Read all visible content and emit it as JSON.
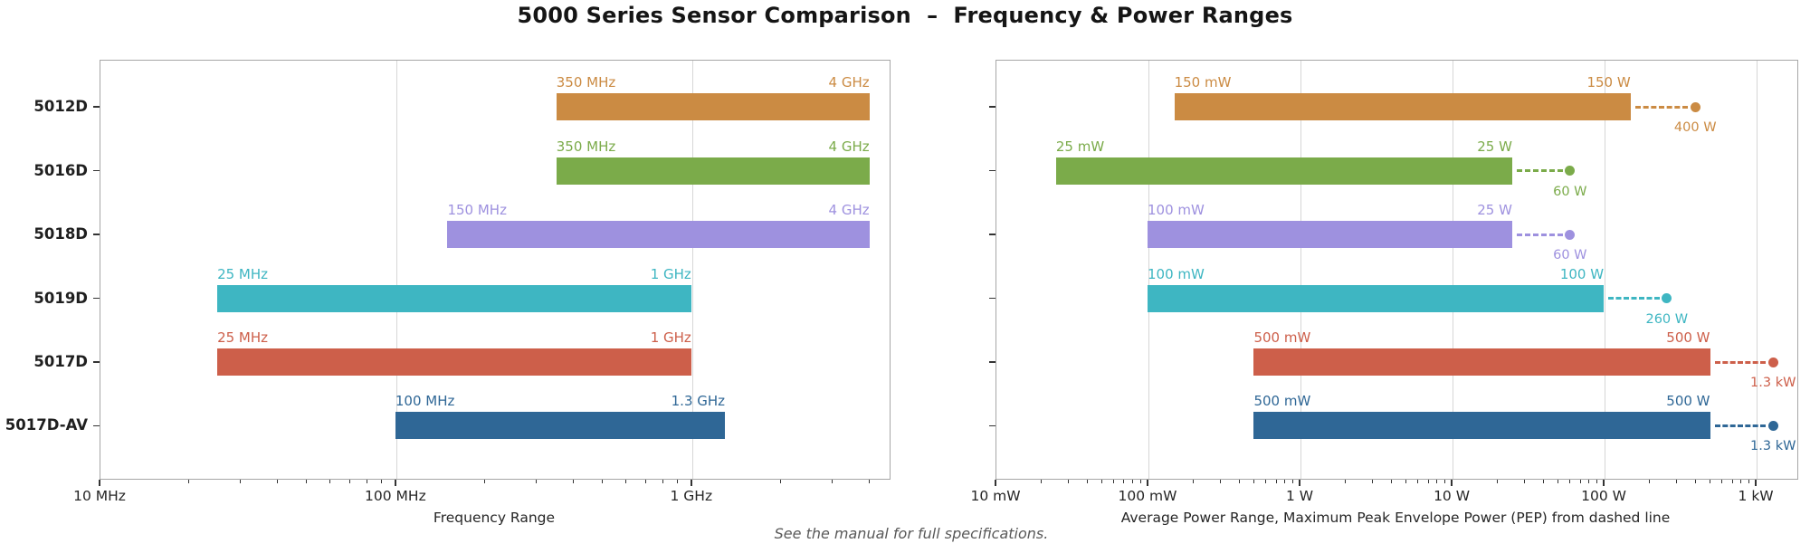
{
  "title": "5000 Series Sensor Comparison  –  Frequency & Power Ranges",
  "footnote": "See the manual for full specifications.",
  "colors": {
    "rows": [
      "#CB8B43",
      "#7BAB4A",
      "#9E91DF",
      "#3EB6C2",
      "#CD5F4A",
      "#2F6796"
    ],
    "grid": "#d6d6d6",
    "spine": "#a6a6a6",
    "tick": "#333333",
    "text": "#262626",
    "title": "#151515",
    "footnote": "#595959"
  },
  "chart_data": [
    {
      "type": "bar",
      "subtype": "horizontal-range",
      "xlabel": "Frequency Range",
      "xscale": "log",
      "xunit": "Hz",
      "xlim": [
        10000000,
        4650000000
      ],
      "grid": true,
      "legend": false,
      "xticks": [
        {
          "value": 10000000,
          "label": "10 MHz"
        },
        {
          "value": 100000000,
          "label": "100 MHz"
        },
        {
          "value": 1000000000,
          "label": "1 GHz"
        }
      ],
      "categories": [
        "5012D",
        "5016D",
        "5018D",
        "5019D",
        "5017D",
        "5017D-AV"
      ],
      "series": [
        {
          "category": "5012D",
          "start": 350000000,
          "end": 4000000000,
          "start_label": "350 MHz",
          "end_label": "4 GHz"
        },
        {
          "category": "5016D",
          "start": 350000000,
          "end": 4000000000,
          "start_label": "350 MHz",
          "end_label": "4 GHz"
        },
        {
          "category": "5018D",
          "start": 150000000,
          "end": 4000000000,
          "start_label": "150 MHz",
          "end_label": "4 GHz"
        },
        {
          "category": "5019D",
          "start": 25000000,
          "end": 1000000000,
          "start_label": "25 MHz",
          "end_label": "1 GHz"
        },
        {
          "category": "5017D",
          "start": 25000000,
          "end": 1000000000,
          "start_label": "25 MHz",
          "end_label": "1 GHz"
        },
        {
          "category": "5017D-AV",
          "start": 100000000,
          "end": 1300000000,
          "start_label": "100 MHz",
          "end_label": "1.3 GHz"
        }
      ]
    },
    {
      "type": "bar",
      "subtype": "horizontal-range",
      "xlabel": "Average Power Range, Maximum Peak Envelope Power (PEP) from dashed line",
      "xscale": "log",
      "xunit": "W",
      "xlim": [
        0.01,
        1850
      ],
      "grid": true,
      "legend": false,
      "xticks": [
        {
          "value": 0.01,
          "label": "10 mW"
        },
        {
          "value": 0.1,
          "label": "100 mW"
        },
        {
          "value": 1,
          "label": "1 W"
        },
        {
          "value": 10,
          "label": "10 W"
        },
        {
          "value": 100,
          "label": "100 W"
        },
        {
          "value": 1000,
          "label": "1 kW"
        }
      ],
      "categories": [
        "5012D",
        "5016D",
        "5018D",
        "5019D",
        "5017D",
        "5017D-AV"
      ],
      "series": [
        {
          "category": "5012D",
          "start": 0.15,
          "end": 150,
          "pep": 400,
          "start_label": "150 mW",
          "end_label": "150 W",
          "pep_label": "400 W"
        },
        {
          "category": "5016D",
          "start": 0.025,
          "end": 25,
          "pep": 60,
          "start_label": "25 mW",
          "end_label": "25 W",
          "pep_label": "60 W"
        },
        {
          "category": "5018D",
          "start": 0.1,
          "end": 25,
          "pep": 60,
          "start_label": "100 mW",
          "end_label": "25 W",
          "pep_label": "60 W"
        },
        {
          "category": "5019D",
          "start": 0.1,
          "end": 100,
          "pep": 260,
          "start_label": "100 mW",
          "end_label": "100 W",
          "pep_label": "260 W"
        },
        {
          "category": "5017D",
          "start": 0.5,
          "end": 500,
          "pep": 1300,
          "start_label": "500 mW",
          "end_label": "500 W",
          "pep_label": "1.3 kW"
        },
        {
          "category": "5017D-AV",
          "start": 0.5,
          "end": 500,
          "pep": 1300,
          "start_label": "500 mW",
          "end_label": "500 W",
          "pep_label": "1.3 kW"
        }
      ]
    }
  ]
}
